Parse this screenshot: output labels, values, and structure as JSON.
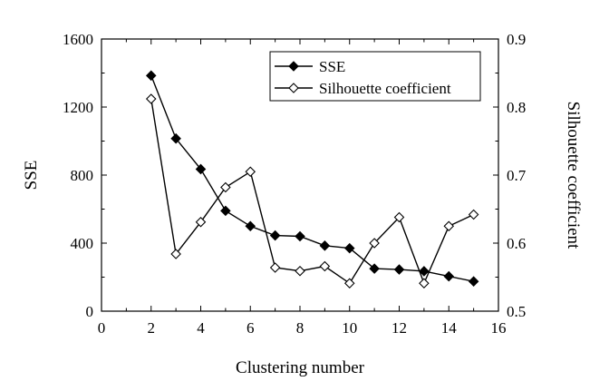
{
  "chart_data": {
    "type": "line",
    "x": [
      2,
      3,
      4,
      5,
      6,
      7,
      8,
      9,
      10,
      11,
      12,
      13,
      14,
      15
    ],
    "series": [
      {
        "name": "SSE",
        "axis": "left",
        "marker": "filled-diamond",
        "values": [
          1385,
          1015,
          835,
          590,
          500,
          445,
          440,
          385,
          370,
          250,
          245,
          235,
          205,
          175
        ]
      },
      {
        "name": "Silhouette coefficient",
        "axis": "right",
        "marker": "open-diamond",
        "values": [
          0.812,
          0.584,
          0.631,
          0.682,
          0.705,
          0.564,
          0.559,
          0.566,
          0.541,
          0.6,
          0.638,
          0.541,
          0.625,
          0.642
        ]
      }
    ],
    "xlabel": "Clustering number",
    "ylabel": "SSE",
    "y2label": "Silhouette coefficient",
    "xlim": [
      0,
      16
    ],
    "ylim": [
      0,
      1600
    ],
    "y2lim": [
      0.5,
      0.9
    ],
    "xticks": [
      "0",
      "2",
      "4",
      "6",
      "8",
      "10",
      "12",
      "14",
      "16"
    ],
    "yticks": [
      "0",
      "400",
      "800",
      "1200",
      "1600"
    ],
    "y2ticks": [
      "0.5",
      "0.6",
      "0.7",
      "0.8",
      "0.9"
    ],
    "legend_position": "top-right",
    "grid": false,
    "line_color": "#000000"
  }
}
